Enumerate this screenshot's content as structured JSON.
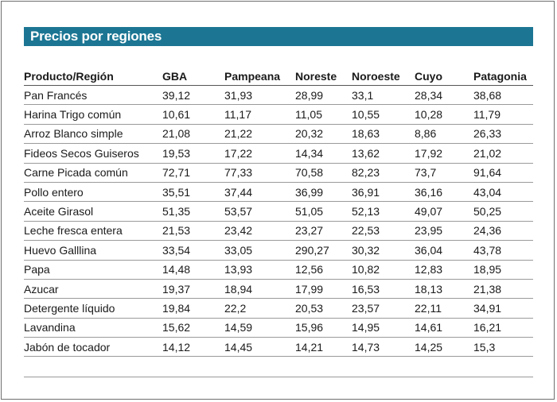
{
  "title": "Precios por regiones",
  "table": {
    "headers": [
      "Producto/Región",
      "GBA",
      "Pampeana",
      "Noreste",
      "Noroeste",
      "Cuyo",
      "Patagonia"
    ],
    "rows": [
      [
        "Pan Francés",
        "39,12",
        "31,93",
        "28,99",
        "33,1",
        "28,34",
        "38,68"
      ],
      [
        "Harina Trigo común",
        "10,61",
        "11,17",
        "11,05",
        "10,55",
        "10,28",
        "11,79"
      ],
      [
        "Arroz Blanco simple",
        "21,08",
        "21,22",
        "20,32",
        "18,63",
        "8,86",
        "26,33"
      ],
      [
        "Fideos Secos Guiseros",
        "19,53",
        "17,22",
        "14,34",
        "13,62",
        "17,92",
        "21,02"
      ],
      [
        "Carne Picada común",
        "72,71",
        "77,33",
        "70,58",
        "82,23",
        "73,7",
        "91,64"
      ],
      [
        "Pollo entero",
        "35,51",
        "37,44",
        "36,99",
        "36,91",
        "36,16",
        "43,04"
      ],
      [
        "Aceite Girasol",
        "51,35",
        "53,57",
        "51,05",
        "52,13",
        "49,07",
        "50,25"
      ],
      [
        "Leche fresca entera",
        "21,53",
        "23,42",
        "23,27",
        "22,53",
        "23,95",
        "24,36"
      ],
      [
        "Huevo Galllina",
        "33,54",
        "33,05",
        "290,27",
        "30,32",
        "36,04",
        "43,78"
      ],
      [
        "Papa",
        "14,48",
        "13,93",
        "12,56",
        "10,82",
        "12,83",
        "18,95"
      ],
      [
        "Azucar",
        "19,37",
        "18,94",
        "17,99",
        "16,53",
        "18,13",
        "21,38"
      ],
      [
        "Detergente líquido",
        "19,84",
        "22,2",
        "20,53",
        "23,57",
        "22,11",
        "34,91"
      ],
      [
        "Lavandina",
        "15,62",
        "14,59",
        "15,96",
        "14,95",
        "14,61",
        "16,21"
      ],
      [
        "Jabón de tocador",
        "14,12",
        "14,45",
        "14,21",
        "14,73",
        "14,25",
        "15,3"
      ]
    ]
  },
  "colors": {
    "title_bar": "#1c7693",
    "title_text": "#ffffff",
    "text": "#1a1a1a",
    "rule": "#9a9a9a",
    "frame": "#6f6f6f"
  }
}
